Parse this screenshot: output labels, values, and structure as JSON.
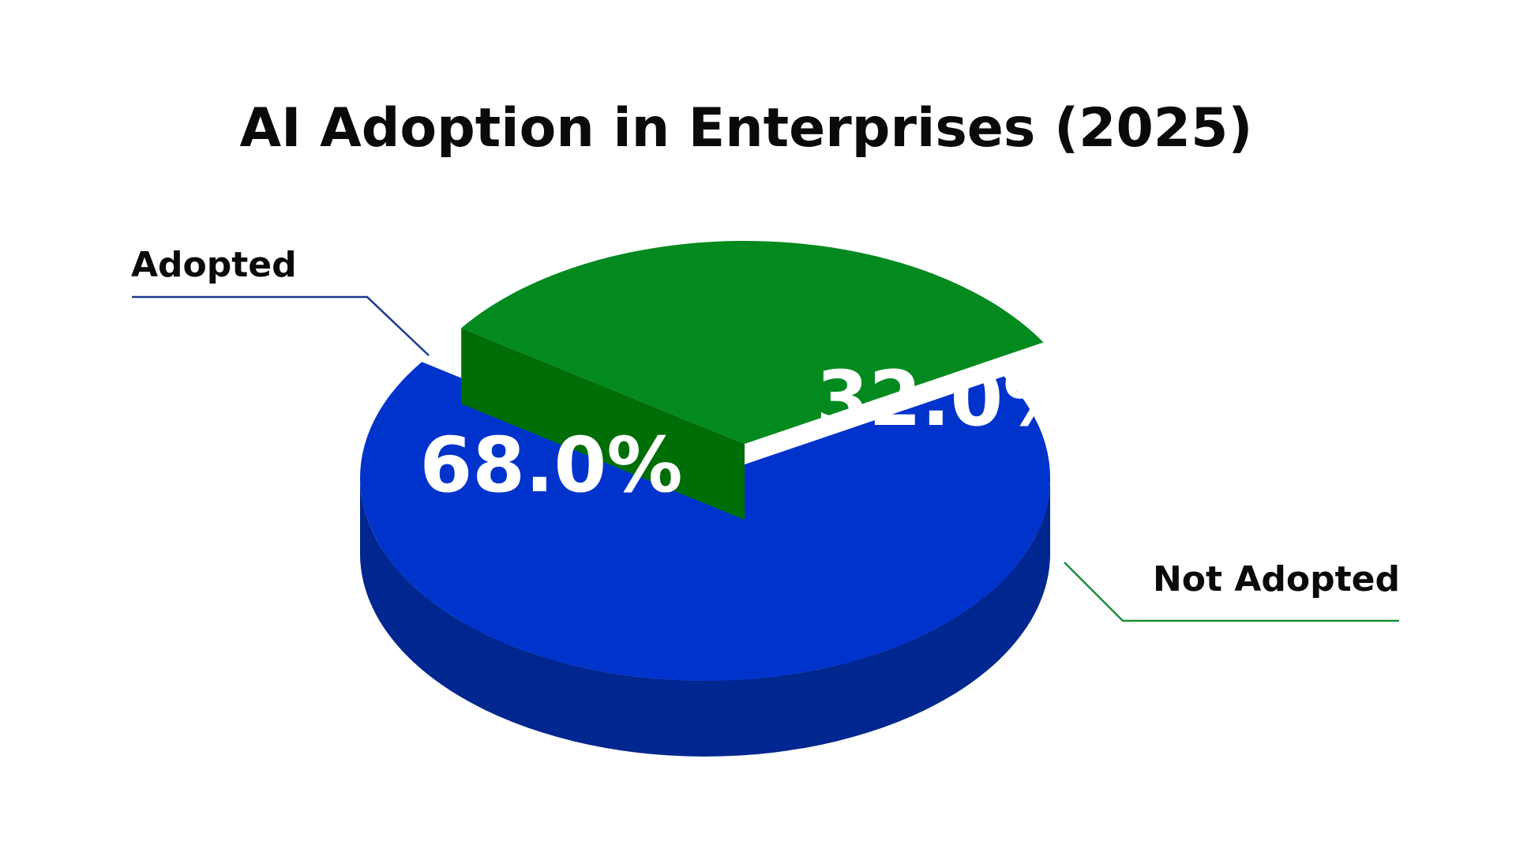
{
  "chart_data": {
    "type": "pie",
    "title": "AI Adoption in Enterprises (2025)",
    "categories": [
      "Adopted",
      "Not Adopted"
    ],
    "values": [
      68.0,
      32.0
    ],
    "value_labels": [
      "68.0%",
      "32.0%"
    ],
    "colors": {
      "Adopted": {
        "top": "#0033cc",
        "side": "#00268f",
        "line": "#1a3a8f"
      },
      "Not Adopted": {
        "top": "#038a1f",
        "side": "#006e06",
        "outer": "#00a000",
        "line": "#1a8f3a"
      }
    },
    "exploded": "Not Adopted",
    "style": "3d",
    "legend": "callout-labels"
  }
}
